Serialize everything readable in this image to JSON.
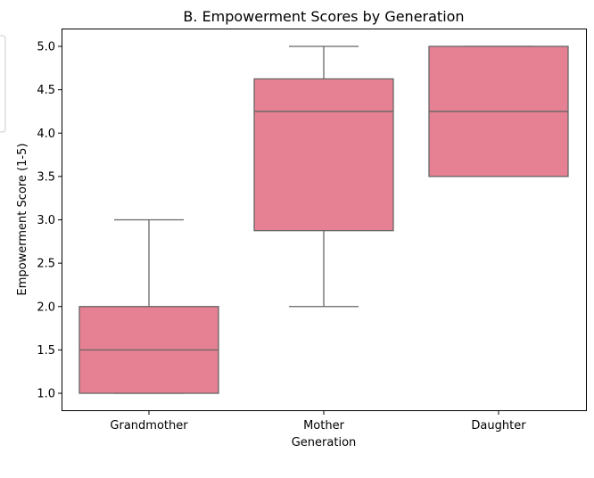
{
  "chart_data": {
    "type": "box",
    "title": "B. Empowerment Scores by Generation",
    "xlabel": "Generation",
    "ylabel": "Empowerment Score (1-5)",
    "ylim": [
      0.8,
      5.2
    ],
    "yticks": [
      "1.0",
      "1.5",
      "2.0",
      "2.5",
      "3.0",
      "3.5",
      "4.0",
      "4.5",
      "5.0"
    ],
    "categories": [
      "Grandmother",
      "Mother",
      "Daughter"
    ],
    "boxes": [
      {
        "whisker_low": 1.0,
        "q1": 1.0,
        "median": 1.5,
        "q3": 2.0,
        "whisker_high": 3.0
      },
      {
        "whisker_low": 2.0,
        "q1": 2.875,
        "median": 4.25,
        "q3": 4.625,
        "whisker_high": 5.0
      },
      {
        "whisker_low": 3.5,
        "q1": 3.5,
        "median": 4.25,
        "q3": 5.0,
        "whisker_high": 5.0
      }
    ],
    "box_color": "#e68193",
    "line_color": "#666666",
    "grid": false
  }
}
